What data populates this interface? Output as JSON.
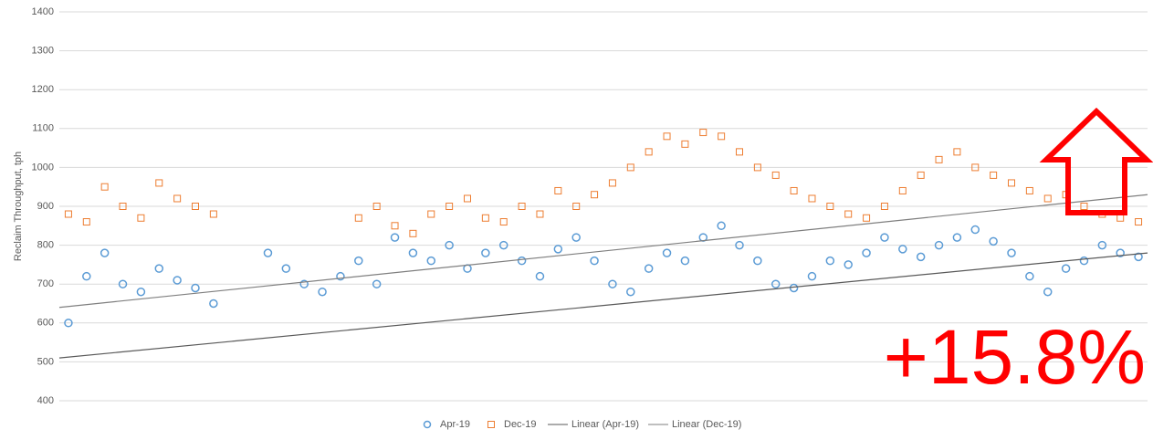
{
  "chart_data": {
    "type": "scatter",
    "y_label": "Reclaim Throughput, tph",
    "ylim": [
      400,
      1400
    ],
    "yticks": [
      400,
      500,
      600,
      700,
      800,
      900,
      1000,
      1100,
      1200,
      1300,
      1400
    ],
    "grid": true,
    "legend": "bottom",
    "series": [
      {
        "name": "Apr-19",
        "color": "#5b9bd5",
        "marker": "circle",
        "values": [
          600,
          720,
          780,
          700,
          680,
          740,
          710,
          690,
          650,
          null,
          null,
          780,
          740,
          700,
          680,
          720,
          760,
          700,
          820,
          780,
          760,
          800,
          740,
          780,
          800,
          760,
          720,
          790,
          820,
          760,
          700,
          680,
          740,
          780,
          760,
          820,
          850,
          800,
          760,
          700,
          690,
          720,
          760,
          750,
          780,
          820,
          790,
          770,
          800,
          820,
          840,
          810,
          780,
          720,
          680,
          740,
          760,
          800,
          780,
          770
        ]
      },
      {
        "name": "Dec-19",
        "color": "#ed7d31",
        "marker": "square",
        "values": [
          880,
          860,
          950,
          900,
          870,
          960,
          920,
          900,
          880,
          null,
          null,
          null,
          null,
          null,
          null,
          null,
          870,
          900,
          850,
          830,
          880,
          900,
          920,
          870,
          860,
          900,
          880,
          940,
          900,
          930,
          960,
          1000,
          1040,
          1080,
          1060,
          1090,
          1080,
          1040,
          1000,
          980,
          940,
          920,
          900,
          880,
          870,
          900,
          940,
          980,
          1020,
          1040,
          1000,
          980,
          960,
          940,
          920,
          930,
          900,
          880,
          870,
          860
        ]
      }
    ],
    "trendlines": [
      {
        "name": "Linear (Apr-19)",
        "color": "#595959",
        "values": [
          510,
          780
        ]
      },
      {
        "name": "Linear (Dec-19)",
        "color": "#7f7f7f",
        "values": [
          640,
          930
        ]
      }
    ],
    "annotation": "+15.8%"
  }
}
